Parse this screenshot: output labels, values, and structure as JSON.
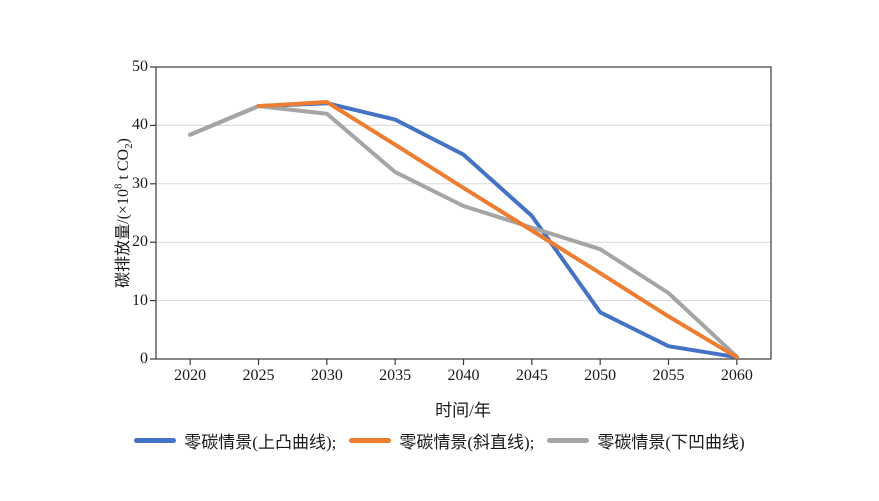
{
  "page": {
    "background": "#ffffff"
  },
  "chart_data": {
    "type": "line",
    "title": "",
    "xlabel": "时间/年",
    "ylabel": "碳排放量/(×10⁸ t CO₂)",
    "ylabel_parts": {
      "prefix": "碳排放量/(×10",
      "sup": "8",
      "mid": " t CO",
      "sub": "2",
      "suffix": ")"
    },
    "x_ticks": [
      2020,
      2025,
      2030,
      2035,
      2040,
      2045,
      2050,
      2055,
      2060
    ],
    "y_ticks": [
      0,
      10,
      20,
      30,
      40,
      50
    ],
    "xlim": [
      2017.5,
      2062.5
    ],
    "ylim": [
      0,
      50
    ],
    "grid": "horizontal-only",
    "gridline_color": "#d9d9d9",
    "axis_color": "#3a3a3a",
    "legend_position": "bottom",
    "line_width": 4,
    "series": [
      {
        "name": "零碳情景(上凸曲线)",
        "color": "#4472C4",
        "points": [
          [
            2020,
            38.4
          ],
          [
            2025,
            43.3
          ],
          [
            2030,
            43.8
          ],
          [
            2035,
            41
          ],
          [
            2040,
            35
          ],
          [
            2045,
            24.5
          ],
          [
            2050,
            8
          ],
          [
            2055,
            2.2
          ],
          [
            2060,
            0.3
          ]
        ]
      },
      {
        "name": "零碳情景(斜直线)",
        "color": "#ED7D31",
        "points": [
          [
            2025,
            43.3
          ],
          [
            2030,
            44
          ],
          [
            2035,
            36.7
          ],
          [
            2040,
            29.3
          ],
          [
            2045,
            22
          ],
          [
            2050,
            14.7
          ],
          [
            2055,
            7.3
          ],
          [
            2060,
            0.3
          ]
        ]
      },
      {
        "name": "零碳情景(下凹曲线)",
        "color": "#A5A5A5",
        "points": [
          [
            2020,
            38.4
          ],
          [
            2025,
            43.3
          ],
          [
            2030,
            42
          ],
          [
            2035,
            32
          ],
          [
            2040,
            26.2
          ],
          [
            2045,
            22.5
          ],
          [
            2050,
            18.8
          ],
          [
            2055,
            11.3
          ],
          [
            2060,
            0.4
          ]
        ]
      }
    ],
    "draw_order": [
      0,
      2,
      1
    ]
  },
  "legend": {
    "items": [
      {
        "label": "零碳情景(上凸曲线);",
        "color": "#4472C4"
      },
      {
        "label": "零碳情景(斜直线);",
        "color": "#ED7D31"
      },
      {
        "label": "零碳情景(下凹曲线)",
        "color": "#A5A5A5"
      }
    ]
  }
}
